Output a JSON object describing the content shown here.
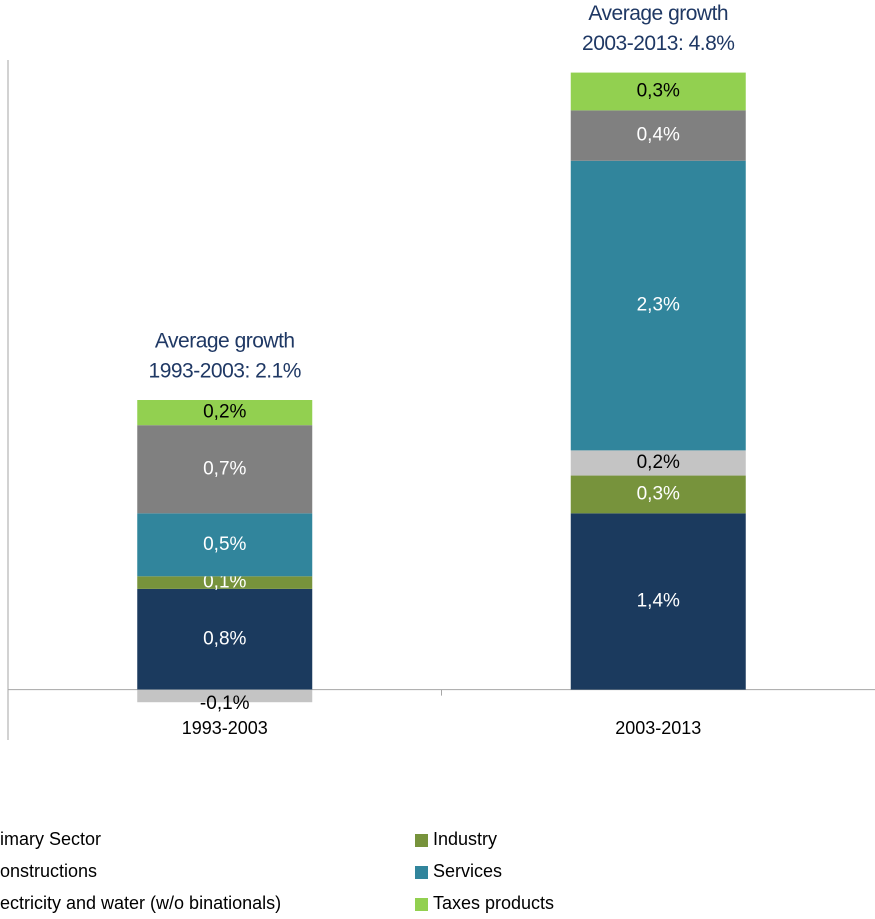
{
  "chart_data": {
    "type": "stacked_bar",
    "categories": [
      "1993-2003",
      "2003-2013"
    ],
    "series": [
      {
        "name": "imary Sector",
        "color": "#1b3a5e",
        "label_color": "#ffffff",
        "values": [
          0.8,
          1.4
        ],
        "value_labels": [
          "0,8%",
          "1,4%"
        ]
      },
      {
        "name": "Industry",
        "color": "#77933c",
        "label_color": "#ffffff",
        "values": [
          0.1,
          0.3
        ],
        "value_labels": [
          "0,1%",
          "0,3%"
        ]
      },
      {
        "name": "onstructions",
        "color": "#c4c4c4",
        "label_color": "#000000",
        "values": [
          -0.1,
          0.2
        ],
        "value_labels": [
          "-0,1%",
          "0,2%"
        ]
      },
      {
        "name": "Services",
        "color": "#31859c",
        "label_color": "#ffffff",
        "values": [
          0.5,
          2.3
        ],
        "value_labels": [
          "0,5%",
          "2,3%"
        ]
      },
      {
        "name": "ectricity and water (w/o binationals)",
        "color": "#808080",
        "label_color": "#ffffff",
        "values": [
          0.7,
          0.4
        ],
        "value_labels": [
          "0,7%",
          "0,4%"
        ]
      },
      {
        "name": "Taxes products",
        "color": "#92d050",
        "label_color": "#000000",
        "values": [
          0.2,
          0.3
        ],
        "value_labels": [
          "0,2%",
          "0,3%"
        ]
      }
    ],
    "annotations": [
      {
        "lines": [
          "Average growth",
          "1993-2003: 2.1%"
        ]
      },
      {
        "lines": [
          "Average growth",
          "2003-2013: 4.8%"
        ]
      }
    ],
    "ylim": [
      -0.4,
      5.0
    ]
  }
}
